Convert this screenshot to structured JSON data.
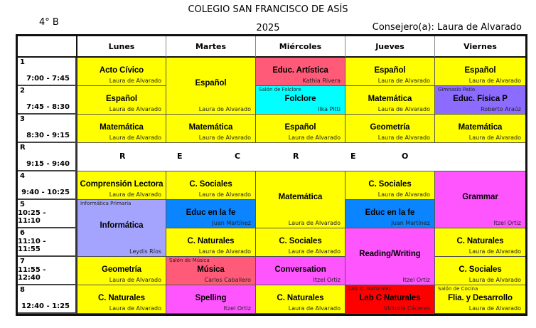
{
  "header": {
    "school": "COLEGIO SAN FRANCISCO DE ASÍS",
    "grade": "4° B",
    "year": "2025",
    "advisor": "Consejero(a): Laura de Alvarado"
  },
  "days": [
    "Lunes",
    "Martes",
    "Miércoles",
    "Jueves",
    "Viernes"
  ],
  "periods": [
    {
      "n": "1",
      "time": "7:00 - 7:45"
    },
    {
      "n": "2",
      "time": "7:45 - 8:30"
    },
    {
      "n": "3",
      "time": "8:30 - 9:15"
    },
    {
      "n": "R",
      "time": "9:15 - 9:40"
    },
    {
      "n": "4",
      "time": "9:40 - 10:25"
    },
    {
      "n": "5",
      "time": "10:25 - 11:10"
    },
    {
      "n": "6",
      "time": "11:10 - 11:55"
    },
    {
      "n": "7",
      "time": "11:55 - 12:40"
    },
    {
      "n": "8",
      "time": "12:40 - 1:25"
    }
  ],
  "recess_letters": [
    "R",
    "E",
    "C",
    "R",
    "E",
    "O"
  ],
  "colors": {
    "yellow": "#ffff00",
    "rose": "#ff5a78",
    "cyan": "#00ffff",
    "violet": "#8c6cff",
    "lavender": "#a4a4ff",
    "blue": "#0a84ff",
    "magenta": "#ff55ff",
    "red": "#ff0000"
  },
  "classes": [
    {
      "day": 0,
      "period": "1",
      "periods": 1,
      "subject": "Acto Cívico",
      "teacher": "Laura de Alvarado",
      "color": "yellow"
    },
    {
      "day": 0,
      "period": "2",
      "periods": 1,
      "subject": "Español",
      "teacher": "Laura de Alvarado",
      "color": "yellow"
    },
    {
      "day": 0,
      "period": "3",
      "periods": 1,
      "subject": "Matemática",
      "teacher": "Laura de Alvarado",
      "color": "yellow"
    },
    {
      "day": 0,
      "period": "4",
      "periods": 1,
      "subject": "Comprensión Lectora",
      "teacher": "Laura de Alvarado",
      "color": "yellow"
    },
    {
      "day": 0,
      "period": "5",
      "periods": 2,
      "subject": "Informática",
      "teacher": "Leydis Ríos",
      "room": "Informática Primaria",
      "color": "lavender"
    },
    {
      "day": 0,
      "period": "7",
      "periods": 1,
      "subject": "Geometría",
      "teacher": "Laura de Alvarado",
      "color": "yellow"
    },
    {
      "day": 0,
      "period": "8",
      "periods": 1,
      "subject": "C. Naturales",
      "teacher": "Laura de Alvarado",
      "color": "yellow"
    },
    {
      "day": 1,
      "period": "1",
      "periods": 2,
      "subject": "Español",
      "teacher": "Laura de Alvarado",
      "color": "yellow"
    },
    {
      "day": 1,
      "period": "3",
      "periods": 1,
      "subject": "Matemática",
      "teacher": "Laura de Alvarado",
      "color": "yellow"
    },
    {
      "day": 1,
      "period": "4",
      "periods": 1,
      "subject": "C. Sociales",
      "teacher": "Laura de Alvarado",
      "color": "yellow"
    },
    {
      "day": 1,
      "period": "5",
      "periods": 1,
      "subject": "Educ en la fe",
      "teacher": "Juan Martínez",
      "color": "blue"
    },
    {
      "day": 1,
      "period": "6",
      "periods": 1,
      "subject": "C. Naturales",
      "teacher": "Laura de Alvarado",
      "color": "yellow"
    },
    {
      "day": 1,
      "period": "7",
      "periods": 1,
      "subject": "Música",
      "teacher": "Carlos Caballero",
      "room": "Salón de Música",
      "color": "rose"
    },
    {
      "day": 1,
      "period": "8",
      "periods": 1,
      "subject": "Spelling",
      "teacher": "Itzel Ortiz",
      "color": "magenta"
    },
    {
      "day": 2,
      "period": "1",
      "periods": 1,
      "subject": "Educ. Artística",
      "teacher": "Kathia Rivera",
      "color": "rose"
    },
    {
      "day": 2,
      "period": "2",
      "periods": 1,
      "subject": "Folclore",
      "teacher": "Ilka Pitti",
      "room": "Salón de Folclore",
      "color": "cyan"
    },
    {
      "day": 2,
      "period": "3",
      "periods": 1,
      "subject": "Español",
      "teacher": "Laura de Alvarado",
      "color": "yellow"
    },
    {
      "day": 2,
      "period": "4",
      "periods": 2,
      "subject": "Matemática",
      "teacher": "Laura de Alvarado",
      "color": "yellow"
    },
    {
      "day": 2,
      "period": "6",
      "periods": 1,
      "subject": "C. Sociales",
      "teacher": "Laura de Alvarado",
      "color": "yellow"
    },
    {
      "day": 2,
      "period": "7",
      "periods": 1,
      "subject": "Conversation",
      "teacher": "Itzel Ortiz",
      "color": "magenta"
    },
    {
      "day": 2,
      "period": "8",
      "periods": 1,
      "subject": "C. Naturales",
      "teacher": "Laura de Alvarado",
      "color": "yellow"
    },
    {
      "day": 3,
      "period": "1",
      "periods": 1,
      "subject": "Español",
      "teacher": "Laura de Alvarado",
      "color": "yellow"
    },
    {
      "day": 3,
      "period": "2",
      "periods": 1,
      "subject": "Matemática",
      "teacher": "Laura de Alvarado",
      "color": "yellow"
    },
    {
      "day": 3,
      "period": "3",
      "periods": 1,
      "subject": "Geometría",
      "teacher": "Laura de Alvarado",
      "color": "yellow"
    },
    {
      "day": 3,
      "period": "4",
      "periods": 1,
      "subject": "C. Sociales",
      "teacher": "Laura de Alvarado",
      "color": "yellow"
    },
    {
      "day": 3,
      "period": "5",
      "periods": 1,
      "subject": "Educ en la fe",
      "teacher": "Juan Martínez",
      "color": "blue"
    },
    {
      "day": 3,
      "period": "6",
      "periods": 2,
      "subject": "Reading/Writing",
      "teacher": "Itzel Ortiz",
      "color": "magenta"
    },
    {
      "day": 3,
      "period": "8",
      "periods": 1,
      "subject": "Lab C Naturales",
      "teacher": "Victoria Cáceres",
      "room": "Lab. C. Naturales",
      "color": "red"
    },
    {
      "day": 4,
      "period": "1",
      "periods": 1,
      "subject": "Español",
      "teacher": "Laura de Alvarado",
      "color": "yellow"
    },
    {
      "day": 4,
      "period": "2",
      "periods": 1,
      "subject": "Educ. Física P",
      "teacher": "Roberto Araúz",
      "room": "Gimnasio Patio",
      "color": "violet"
    },
    {
      "day": 4,
      "period": "3",
      "periods": 1,
      "subject": "Matemática",
      "teacher": "Laura de Alvarado",
      "color": "yellow"
    },
    {
      "day": 4,
      "period": "4",
      "periods": 2,
      "subject": "Grammar",
      "teacher": "Itzel Ortiz",
      "color": "magenta"
    },
    {
      "day": 4,
      "period": "6",
      "periods": 1,
      "subject": "C. Naturales",
      "teacher": "Laura de Alvarado",
      "color": "yellow"
    },
    {
      "day": 4,
      "period": "7",
      "periods": 1,
      "subject": "C. Sociales",
      "teacher": "Laura de Alvarado",
      "color": "yellow"
    },
    {
      "day": 4,
      "period": "8",
      "periods": 1,
      "subject": "Flia. y Desarrollo",
      "teacher": "Laura de Alvarado",
      "room": "Salón de Cocina",
      "color": "yellow"
    }
  ]
}
